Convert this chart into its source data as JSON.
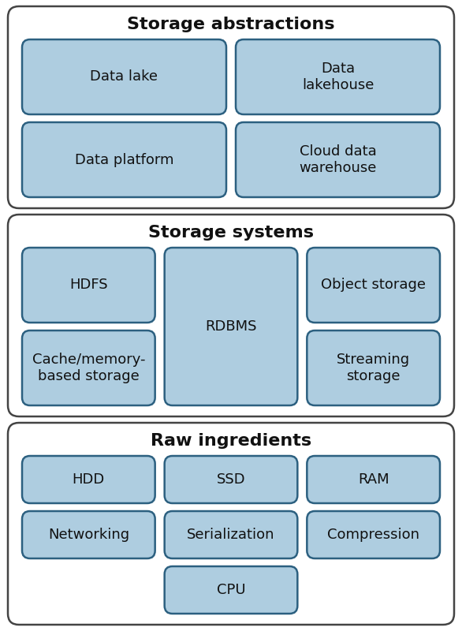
{
  "bg_color": "#ffffff",
  "box_fill": "#aecde0",
  "box_edge": "#2c6080",
  "outer_edge": "#444444",
  "outer_fill": "#ffffff",
  "title_fontsize": 16,
  "label_fontsize": 13,
  "figsize": [
    5.86,
    8.0
  ],
  "dpi": 100,
  "sections": [
    {
      "title": "Storage abstractions",
      "row": 2,
      "boxes": [
        {
          "label": "Data lake",
          "col": 0,
          "row": 0,
          "colspan": 1,
          "rowspan": 1
        },
        {
          "label": "Data\nlakehouse",
          "col": 1,
          "row": 0,
          "colspan": 1,
          "rowspan": 1
        },
        {
          "label": "Data platform",
          "col": 0,
          "row": 1,
          "colspan": 1,
          "rowspan": 1
        },
        {
          "label": "Cloud data\nwarehouse",
          "col": 1,
          "row": 1,
          "colspan": 1,
          "rowspan": 1
        }
      ]
    },
    {
      "title": "Storage systems",
      "row": 1,
      "boxes": [
        {
          "label": "HDFS",
          "col": 0,
          "row": 0,
          "colspan": 1,
          "rowspan": 1
        },
        {
          "label": "Cache/memory-\nbased storage",
          "col": 0,
          "row": 1,
          "colspan": 1,
          "rowspan": 1
        },
        {
          "label": "RDBMS",
          "col": 1,
          "row": 0,
          "colspan": 1,
          "rowspan": 2
        },
        {
          "label": "Object storage",
          "col": 2,
          "row": 0,
          "colspan": 1,
          "rowspan": 1
        },
        {
          "label": "Streaming\nstorage",
          "col": 2,
          "row": 1,
          "colspan": 1,
          "rowspan": 1
        }
      ]
    },
    {
      "title": "Raw ingredients",
      "row": 0,
      "boxes": [
        {
          "label": "HDD",
          "col": 0,
          "row": 0,
          "colspan": 1,
          "rowspan": 1
        },
        {
          "label": "SSD",
          "col": 1,
          "row": 0,
          "colspan": 1,
          "rowspan": 1
        },
        {
          "label": "RAM",
          "col": 2,
          "row": 0,
          "colspan": 1,
          "rowspan": 1
        },
        {
          "label": "Networking",
          "col": 0,
          "row": 1,
          "colspan": 1,
          "rowspan": 1
        },
        {
          "label": "Serialization",
          "col": 1,
          "row": 1,
          "colspan": 1,
          "rowspan": 1
        },
        {
          "label": "Compression",
          "col": 2,
          "row": 1,
          "colspan": 1,
          "rowspan": 1
        },
        {
          "label": "CPU",
          "col": 1,
          "row": 2,
          "colspan": 1,
          "rowspan": 1
        }
      ]
    }
  ]
}
